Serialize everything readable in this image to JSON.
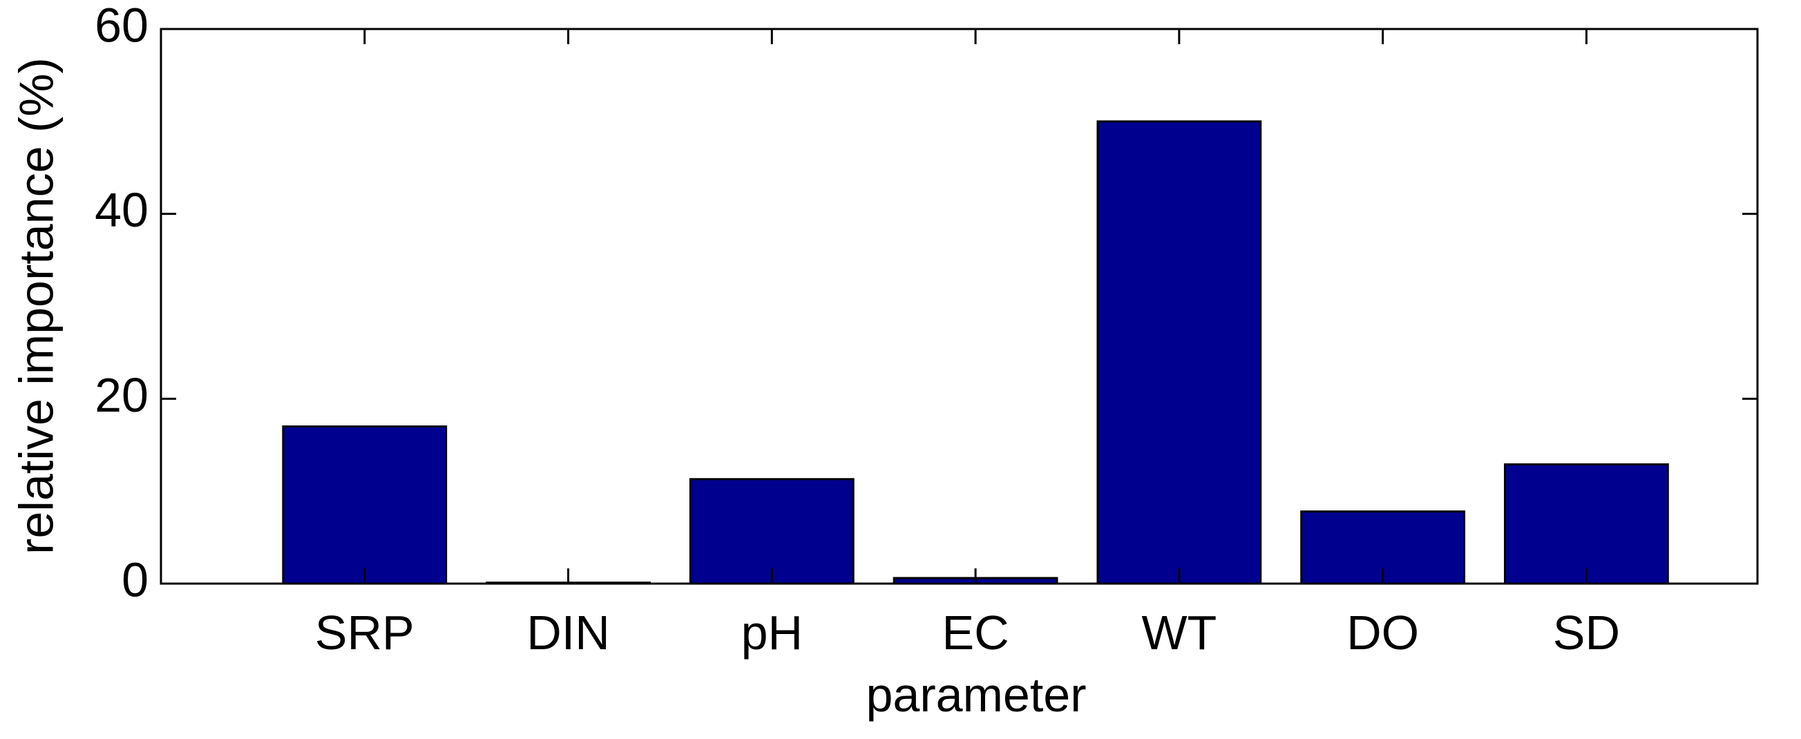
{
  "chart_data": {
    "type": "bar",
    "x_label": "parameter",
    "y_label": "relative importance (%)",
    "categories": [
      "SRP",
      "DIN",
      "pH",
      "EC",
      "WT",
      "DO",
      "SD"
    ],
    "values": [
      17,
      0.1,
      11.3,
      0.6,
      50,
      7.8,
      12.9
    ],
    "color": "#00008f",
    "ylim": [
      0,
      60
    ],
    "yticks": [
      0,
      20,
      40,
      60
    ],
    "grid": false
  }
}
